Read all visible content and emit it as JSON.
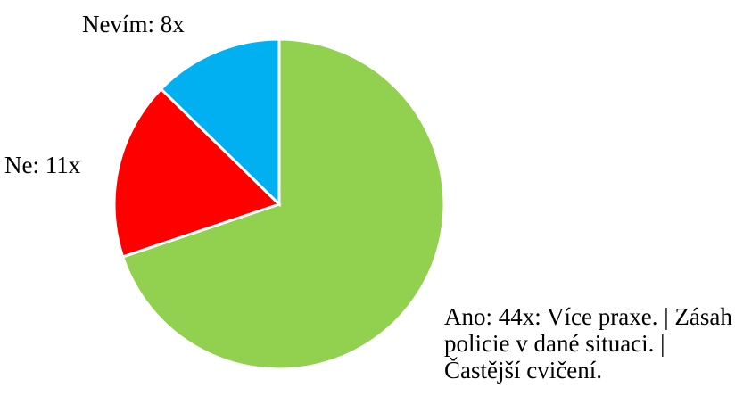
{
  "chart_data": {
    "type": "pie",
    "values": [
      44,
      11,
      8
    ],
    "value_labels": [
      "Ano: 44x: Více praxe. | Zásah policie v dané situaci. | Častější cvičení.",
      "Ne: 11x",
      "Nevím: 8x"
    ],
    "colors": [
      "#92d050",
      "#ff0000",
      "#00b0f0"
    ]
  }
}
